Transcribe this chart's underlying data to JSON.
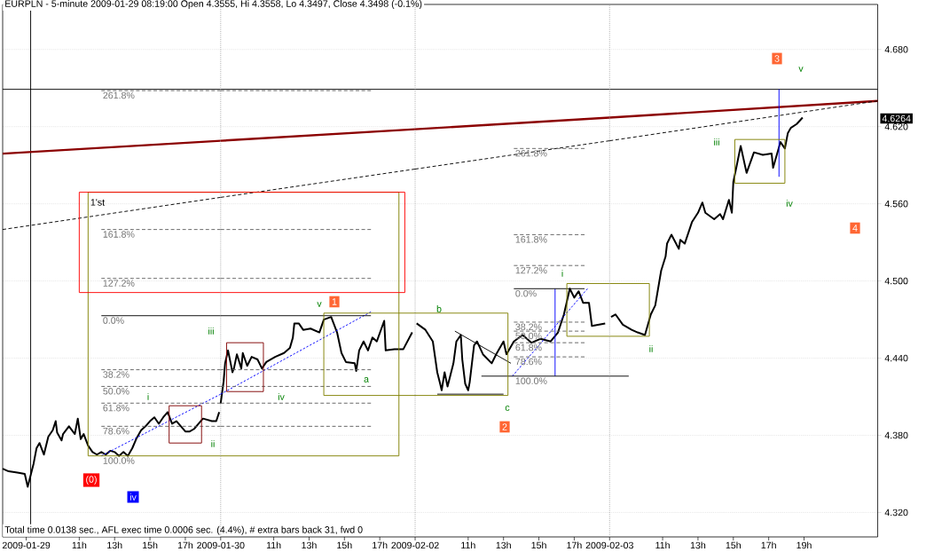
{
  "chart_data": [
    {
      "type": "line",
      "title": "EURPLN - 5-minute 2009-01-29 08:19:00 Open 4.3555, Hi 4.3558, Lo 4.3497, Close 4.3498 (-0.1%)",
      "xlim": [
        "2009-01-29T06:40",
        "2009-01-29T19:00"
      ],
      "ylim": [
        4.301,
        4.715
      ],
      "xticks": [
        {
          "value": "2009-01-29T08:00",
          "label": "2009-01-29"
        },
        {
          "value": "2009-01-29T11:00",
          "label": "11h"
        },
        {
          "value": "2009-01-29T13:00",
          "label": "13h"
        },
        {
          "value": "2009-01-29T15:00",
          "label": "15h"
        },
        {
          "value": "2009-01-29T17:00",
          "label": "17h"
        }
      ],
      "yticks": [
        4.32,
        4.38,
        4.44,
        4.5,
        4.56,
        4.62,
        4.68
      ],
      "tick_labels": "x",
      "grid": "y",
      "series": [
        {
          "color": "#000000",
          "x": [
            "2009-01-29T06:40",
            "2009-01-29T07:00",
            "2009-01-29T07:30",
            "2009-01-29T07:55",
            "2009-01-29T08:05",
            "2009-01-29T08:15",
            "2009-01-29T08:25",
            "2009-01-29T08:35",
            "2009-01-29T08:45",
            "2009-01-29T09:00",
            "2009-01-29T09:15",
            "2009-01-29T09:30",
            "2009-01-29T09:40",
            "2009-01-29T09:45",
            "2009-01-29T10:00",
            "2009-01-29T10:05",
            "2009-01-29T10:25",
            "2009-01-29T10:45",
            "2009-01-29T10:55",
            "2009-01-29T11:05",
            "2009-01-29T11:15",
            "2009-01-29T11:30",
            "2009-01-29T11:45",
            "2009-01-29T12:00",
            "2009-01-29T12:15",
            "2009-01-29T12:30",
            "2009-01-29T12:45",
            "2009-01-29T13:00",
            "2009-01-29T13:15",
            "2009-01-29T13:30",
            "2009-01-29T13:45",
            "2009-01-29T14:00",
            "2009-01-29T14:15",
            "2009-01-29T14:30",
            "2009-01-29T14:45",
            "2009-01-29T15:00",
            "2009-01-29T15:15",
            "2009-01-29T15:30",
            "2009-01-29T15:45",
            "2009-01-29T16:00",
            "2009-01-29T16:15",
            "2009-01-29T16:30",
            "2009-01-29T16:45",
            "2009-01-29T17:00",
            "2009-01-29T17:15",
            "2009-01-29T17:30",
            "2009-01-29T17:45",
            "2009-01-29T18:00",
            "2009-01-29T18:30",
            "2009-01-29T18:45",
            "2009-01-29T18:55"
          ],
          "values": [
            4.354,
            4.352,
            4.351,
            4.35,
            4.34,
            4.349,
            4.358,
            4.37,
            4.374,
            4.365,
            4.379,
            4.384,
            4.391,
            4.382,
            4.376,
            4.381,
            4.387,
            4.381,
            4.393,
            4.377,
            4.381,
            4.372,
            4.367,
            4.365,
            4.367,
            4.365,
            4.368,
            4.367,
            4.364,
            4.367,
            4.364,
            4.37,
            4.378,
            4.384,
            4.387,
            4.391,
            4.394,
            4.389,
            4.394,
            4.398,
            4.389,
            4.391,
            4.387,
            4.383,
            4.383,
            4.385,
            4.389,
            4.393,
            4.391,
            4.391,
            4.398
          ]
        },
        {
          "color": "#8b0000",
          "x": [
            "2009-01-29T06:40",
            "2009-01-29T19:00"
          ],
          "values": [
            4.599,
            4.609
          ]
        },
        {
          "color": "#000000",
          "line_style": "dashed",
          "x": [
            "2009-01-29T06:40",
            "2009-01-29T19:00"
          ],
          "values": [
            4.54,
            4.565
          ]
        },
        {
          "color": "#0000ff",
          "line_style": "dotted",
          "x": [
            "2009-01-29T12:15",
            "2009-01-29T19:00"
          ],
          "values": [
            4.364,
            4.412
          ]
        },
        {
          "color": "#606060",
          "line_style": "dashed",
          "x": [
            "2009-01-29T12:15",
            "2009-01-29T19:00"
          ],
          "values": [
            4.648,
            4.648
          ]
        },
        {
          "color": "#606060",
          "line_style": "dashed",
          "x": [
            "2009-01-29T12:15",
            "2009-01-29T19:00"
          ],
          "values": [
            4.54,
            4.54
          ]
        },
        {
          "color": "#606060",
          "line_style": "dashed",
          "x": [
            "2009-01-29T12:15",
            "2009-01-29T19:00"
          ],
          "values": [
            4.502,
            4.502
          ]
        },
        {
          "color": "#000000",
          "x": [
            "2009-01-29T12:15",
            "2009-01-29T19:00"
          ],
          "values": [
            4.473,
            4.473
          ]
        },
        {
          "color": "#606060",
          "line_style": "dashed",
          "x": [
            "2009-01-29T12:15",
            "2009-01-29T19:00"
          ],
          "values": [
            4.431,
            4.431
          ]
        },
        {
          "color": "#606060",
          "line_style": "dashed",
          "x": [
            "2009-01-29T12:15",
            "2009-01-29T19:00"
          ],
          "values": [
            4.418,
            4.418
          ]
        },
        {
          "color": "#606060",
          "line_style": "dashed",
          "x": [
            "2009-01-29T12:15",
            "2009-01-29T19:00"
          ],
          "values": [
            4.405,
            4.405
          ]
        },
        {
          "color": "#606060",
          "line_style": "dashed",
          "x": [
            "2009-01-29T12:15",
            "2009-01-29T19:00"
          ],
          "values": [
            4.387,
            4.387
          ]
        },
        {
          "color": "#808000",
          "x": [
            "2009-01-29T19:00",
            "2009-01-29T11:30",
            "2009-01-29T11:30",
            "2009-01-29T19:00"
          ],
          "values": [
            4.569,
            4.569,
            4.364,
            4.364
          ]
        },
        {
          "color": "#ff0000",
          "x": [
            "2009-01-29T19:00",
            "2009-01-29T11:00",
            "2009-01-29T11:00",
            "2009-01-29T19:00"
          ],
          "values": [
            4.569,
            4.569,
            4.491,
            4.491
          ]
        },
        {
          "color": "#800000",
          "x": [
            "2009-01-29T16:05",
            "2009-01-29T17:55",
            "2009-01-29T17:55",
            "2009-01-29T16:05",
            "2009-01-29T16:05"
          ],
          "values": [
            4.403,
            4.403,
            4.374,
            4.374,
            4.403
          ]
        }
      ],
      "ref_lines": [
        {
          "axis": "y",
          "value": 4.649,
          "color": "#000000"
        },
        {
          "axis": "x",
          "value": "2009-01-29T08:15",
          "color": "#000000"
        }
      ],
      "annotations": [
        "Total time 0.0138 sec., AFL exec time 0.0006 sec. (4.4%), # extra bars back 31, fwd 0",
        {
          "text": "261.8%",
          "x": "2009-01-29T12:15",
          "y": 4.648
        },
        {
          "text": "161.8%",
          "x": "2009-01-29T12:15",
          "y": 4.54
        },
        {
          "text": "127.2%",
          "x": "2009-01-29T12:15",
          "y": 4.502
        },
        {
          "text": "0.0%",
          "x": "2009-01-29T12:15",
          "y": 4.473
        },
        {
          "text": "38.2%",
          "x": "2009-01-29T12:15",
          "y": 4.431
        },
        {
          "text": "50.0%",
          "x": "2009-01-29T12:15",
          "y": 4.418
        },
        {
          "text": "61.8%",
          "x": "2009-01-29T12:15",
          "y": 4.405
        },
        {
          "text": "78.6%",
          "x": "2009-01-29T12:15",
          "y": 4.387
        },
        {
          "text": "100.0%",
          "x": "2009-01-29T12:15",
          "y": 4.364
        },
        "1'st",
        "i",
        "ii",
        "iii",
        "(0)",
        "iv"
      ]
    },
    {
      "type": "line",
      "xlim": [
        "2009-01-30T08:00",
        "2009-01-30T19:00"
      ],
      "ylim": [
        4.301,
        4.715
      ],
      "xticks": [
        {
          "value": "2009-01-30T08:00",
          "label": "2009-01-30"
        },
        {
          "value": "2009-01-30T11:00",
          "label": "11h"
        },
        {
          "value": "2009-01-30T13:00",
          "label": "13h"
        },
        {
          "value": "2009-01-30T15:00",
          "label": "15h"
        },
        {
          "value": "2009-01-30T17:00",
          "label": "17h"
        }
      ],
      "yticks": [
        4.32,
        4.38,
        4.44,
        4.5,
        4.56,
        4.62,
        4.68
      ],
      "tick_labels": "x",
      "grid": "y",
      "series": [
        {
          "color": "#000000",
          "x": [
            "2009-01-30T08:00",
            "2009-01-30T08:10",
            "2009-01-30T08:15",
            "2009-01-30T08:25",
            "2009-01-30T08:40",
            "2009-01-30T08:45",
            "2009-01-30T08:55",
            "2009-01-30T09:10",
            "2009-01-30T09:15",
            "2009-01-30T09:30",
            "2009-01-30T09:45",
            "2009-01-30T10:05",
            "2009-01-30T10:20",
            "2009-01-30T10:35",
            "2009-01-30T11:05",
            "2009-01-30T11:35",
            "2009-01-30T11:55",
            "2009-01-30T12:05",
            "2009-01-30T12:10",
            "2009-01-30T12:25",
            "2009-01-30T12:40",
            "2009-01-30T13:05",
            "2009-01-30T13:35",
            "2009-01-30T13:50",
            "2009-01-30T14:15",
            "2009-01-30T14:35",
            "2009-01-30T14:50",
            "2009-01-30T15:05",
            "2009-01-30T15:35",
            "2009-01-30T15:40",
            "2009-01-30T15:50",
            "2009-01-30T16:05",
            "2009-01-30T16:20",
            "2009-01-30T16:35",
            "2009-01-30T16:50",
            "2009-01-30T17:15",
            "2009-01-30T17:20",
            "2009-01-30T17:50",
            "2009-01-30T18:20",
            "2009-01-30T18:50"
          ],
          "values": [
            4.405,
            4.422,
            4.436,
            4.446,
            4.429,
            4.432,
            4.443,
            4.432,
            4.444,
            4.434,
            4.441,
            4.439,
            4.432,
            4.437,
            4.441,
            4.444,
            4.448,
            4.456,
            4.467,
            4.467,
            4.462,
            4.463,
            4.46,
            4.47,
            4.472,
            4.46,
            4.444,
            4.437,
            4.436,
            4.43,
            4.446,
            4.453,
            4.446,
            4.456,
            4.453,
            4.469,
            4.446,
            4.447,
            4.447,
            4.46
          ]
        },
        {
          "color": "#8b0000",
          "x": [
            "2009-01-30T08:00",
            "2009-01-30T19:00"
          ],
          "values": [
            4.609,
            4.618
          ]
        },
        {
          "color": "#000000",
          "line_style": "dashed",
          "x": [
            "2009-01-30T08:00",
            "2009-01-30T19:00"
          ],
          "values": [
            4.565,
            4.587
          ]
        },
        {
          "color": "#0000ff",
          "line_style": "dotted",
          "x": [
            "2009-01-30T08:00",
            "2009-01-30T16:30"
          ],
          "values": [
            4.412,
            4.476
          ]
        },
        {
          "color": "#606060",
          "line_style": "dashed",
          "x": [
            "2009-01-30T08:00",
            "2009-01-30T16:30"
          ],
          "values": [
            4.648,
            4.648
          ]
        },
        {
          "color": "#606060",
          "line_style": "dashed",
          "x": [
            "2009-01-30T08:00",
            "2009-01-30T16:30"
          ],
          "values": [
            4.54,
            4.54
          ]
        },
        {
          "color": "#606060",
          "line_style": "dashed",
          "x": [
            "2009-01-30T08:00",
            "2009-01-30T16:30"
          ],
          "values": [
            4.502,
            4.502
          ]
        },
        {
          "color": "#000000",
          "x": [
            "2009-01-30T08:00",
            "2009-01-30T16:30"
          ],
          "values": [
            4.473,
            4.473
          ]
        },
        {
          "color": "#606060",
          "line_style": "dashed",
          "x": [
            "2009-01-30T08:00",
            "2009-01-30T16:30"
          ],
          "values": [
            4.431,
            4.431
          ]
        },
        {
          "color": "#606060",
          "line_style": "dashed",
          "x": [
            "2009-01-30T08:00",
            "2009-01-30T16:30"
          ],
          "values": [
            4.418,
            4.418
          ]
        },
        {
          "color": "#606060",
          "line_style": "dashed",
          "x": [
            "2009-01-30T08:00",
            "2009-01-30T16:30"
          ],
          "values": [
            4.405,
            4.405
          ]
        },
        {
          "color": "#606060",
          "line_style": "dashed",
          "x": [
            "2009-01-30T08:00",
            "2009-01-30T16:30"
          ],
          "values": [
            4.387,
            4.387
          ]
        },
        {
          "color": "#808000",
          "x": [
            "2009-01-30T08:00",
            "2009-01-30T18:05",
            "2009-01-30T18:05",
            "2009-01-30T08:00"
          ],
          "values": [
            4.569,
            4.569,
            4.364,
            4.364
          ]
        },
        {
          "color": "#ff0000",
          "x": [
            "2009-01-30T08:00",
            "2009-01-30T18:25",
            "2009-01-30T18:25",
            "2009-01-30T08:00"
          ],
          "values": [
            4.569,
            4.569,
            4.491,
            4.491
          ]
        },
        {
          "color": "#800000",
          "x": [
            "2009-01-30T08:20",
            "2009-01-30T10:25",
            "2009-01-30T10:25",
            "2009-01-30T08:20",
            "2009-01-30T08:20"
          ],
          "values": [
            4.452,
            4.452,
            4.414,
            4.414,
            4.452
          ]
        },
        {
          "color": "#808000",
          "x": [
            "2009-01-30T19:00",
            "2009-01-30T13:50",
            "2009-01-30T13:50",
            "2009-01-30T19:00"
          ],
          "values": [
            4.475,
            4.475,
            4.411,
            4.411
          ]
        }
      ],
      "ref_lines": [
        {
          "axis": "y",
          "value": 4.649,
          "color": "#000000"
        },
        {
          "axis": "x",
          "value": "2009-01-30T08:00",
          "color": "#a0a0a0",
          "line_style": "dotted"
        }
      ],
      "annotations": [
        "iv",
        "v",
        "1",
        "a"
      ]
    },
    {
      "type": "line",
      "xlim": [
        "2009-02-02T08:00",
        "2009-02-02T19:00"
      ],
      "ylim": [
        4.301,
        4.715
      ],
      "xticks": [
        {
          "value": "2009-02-02T08:00",
          "label": "2009-02-02"
        },
        {
          "value": "2009-02-02T11:00",
          "label": "11h"
        },
        {
          "value": "2009-02-02T13:00",
          "label": "13h"
        },
        {
          "value": "2009-02-02T15:00",
          "label": "15h"
        },
        {
          "value": "2009-02-02T17:00",
          "label": "17h"
        }
      ],
      "yticks": [
        4.32,
        4.38,
        4.44,
        4.5,
        4.56,
        4.62,
        4.68
      ],
      "tick_labels": "x",
      "grid": "y",
      "series": [
        {
          "color": "#000000",
          "x": [
            "2009-02-02T08:05",
            "2009-02-02T08:35",
            "2009-02-02T09:00",
            "2009-02-02T09:15",
            "2009-02-02T09:25",
            "2009-02-02T09:30",
            "2009-02-02T09:40",
            "2009-02-02T09:50",
            "2009-02-02T10:10",
            "2009-02-02T10:20",
            "2009-02-02T10:35",
            "2009-02-02T10:40",
            "2009-02-02T10:50",
            "2009-02-02T11:00",
            "2009-02-02T11:05",
            "2009-02-02T11:20",
            "2009-02-02T11:30",
            "2009-02-02T11:50",
            "2009-02-02T12:20",
            "2009-02-02T12:35",
            "2009-02-02T13:00",
            "2009-02-02T13:10",
            "2009-02-02T13:35",
            "2009-02-02T14:05",
            "2009-02-02T14:35",
            "2009-02-02T15:05",
            "2009-02-02T15:40",
            "2009-02-02T16:05",
            "2009-02-02T16:25",
            "2009-02-02T16:35",
            "2009-02-02T16:45",
            "2009-02-02T17:00",
            "2009-02-02T17:15",
            "2009-02-02T17:30",
            "2009-02-02T17:50",
            "2009-02-02T18:00",
            "2009-02-02T18:45"
          ],
          "values": [
            4.467,
            4.462,
            4.453,
            4.429,
            4.42,
            4.415,
            4.429,
            4.418,
            4.436,
            4.453,
            4.458,
            4.439,
            4.42,
            4.415,
            4.421,
            4.45,
            4.453,
            4.443,
            4.436,
            4.443,
            4.453,
            4.443,
            4.453,
            4.458,
            4.452,
            4.455,
            4.453,
            4.46,
            4.474,
            4.484,
            4.494,
            4.487,
            4.492,
            4.483,
            4.483,
            4.465,
            4.467
          ]
        },
        {
          "color": "#8b0000",
          "x": [
            "2009-02-02T08:00",
            "2009-02-02T19:00"
          ],
          "values": [
            4.618,
            4.627
          ]
        },
        {
          "color": "#000000",
          "line_style": "dashed",
          "x": [
            "2009-02-02T08:00",
            "2009-02-02T19:00"
          ],
          "values": [
            4.587,
            4.609
          ]
        },
        {
          "color": "#0000ff",
          "line_style": "dotted",
          "x": [
            "2009-02-02T13:30",
            "2009-02-02T17:45"
          ],
          "values": [
            4.426,
            4.494
          ]
        },
        {
          "color": "#0000ff",
          "x": [
            "2009-02-02T15:55",
            "2009-02-02T15:55"
          ],
          "values": [
            4.426,
            4.494
          ]
        },
        {
          "color": "#606060",
          "line_style": "dashed",
          "x": [
            "2009-02-02T13:35",
            "2009-02-02T17:35"
          ],
          "values": [
            4.603,
            4.603
          ]
        },
        {
          "color": "#606060",
          "line_style": "dashed",
          "x": [
            "2009-02-02T13:35",
            "2009-02-02T17:35"
          ],
          "values": [
            4.536,
            4.536
          ]
        },
        {
          "color": "#606060",
          "line_style": "dashed",
          "x": [
            "2009-02-02T13:35",
            "2009-02-02T17:35"
          ],
          "values": [
            4.512,
            4.512
          ]
        },
        {
          "color": "#000000",
          "x": [
            "2009-02-02T13:35",
            "2009-02-02T17:35"
          ],
          "values": [
            4.494,
            4.494
          ]
        },
        {
          "color": "#606060",
          "line_style": "dashed",
          "x": [
            "2009-02-02T13:35",
            "2009-02-02T17:35"
          ],
          "values": [
            4.468,
            4.468
          ]
        },
        {
          "color": "#606060",
          "line_style": "dashed",
          "x": [
            "2009-02-02T13:35",
            "2009-02-02T17:35"
          ],
          "values": [
            4.461,
            4.461
          ]
        },
        {
          "color": "#606060",
          "line_style": "dashed",
          "x": [
            "2009-02-02T13:35",
            "2009-02-02T17:35"
          ],
          "values": [
            4.452,
            4.452
          ]
        },
        {
          "color": "#606060",
          "line_style": "dashed",
          "x": [
            "2009-02-02T13:35",
            "2009-02-02T17:35"
          ],
          "values": [
            4.441,
            4.441
          ]
        },
        {
          "color": "#000000",
          "x": [
            "2009-02-02T11:45",
            "2009-02-02T19:00"
          ],
          "values": [
            4.426,
            4.426
          ]
        },
        {
          "color": "#000000",
          "x": [
            "2009-02-02T09:15",
            "2009-02-02T13:00"
          ],
          "values": [
            4.412,
            4.412
          ]
        },
        {
          "color": "#000000",
          "x": [
            "2009-02-02T10:15",
            "2009-02-02T13:25"
          ],
          "values": [
            4.461,
            4.436
          ]
        },
        {
          "color": "#808000",
          "x": [
            "2009-02-02T08:00",
            "2009-02-02T13:15",
            "2009-02-02T13:15",
            "2009-02-02T08:00"
          ],
          "values": [
            4.475,
            4.475,
            4.411,
            4.411
          ]
        },
        {
          "color": "#808000",
          "x": [
            "2009-02-02T19:00",
            "2009-02-02T16:35",
            "2009-02-02T16:35",
            "2009-02-02T19:00"
          ],
          "values": [
            4.498,
            4.498,
            4.457,
            4.457
          ]
        }
      ],
      "ref_lines": [
        {
          "axis": "y",
          "value": 4.649,
          "color": "#000000"
        },
        {
          "axis": "x",
          "value": "2009-02-02T08:00",
          "color": "#a0a0a0",
          "line_style": "dotted"
        }
      ],
      "annotations": [
        {
          "text": "261.8%",
          "x": "2009-02-02T13:35",
          "y": 4.603
        },
        {
          "text": "161.8%",
          "x": "2009-02-02T13:35",
          "y": 4.536
        },
        {
          "text": "127.2%",
          "x": "2009-02-02T13:35",
          "y": 4.512
        },
        {
          "text": "0.0%",
          "x": "2009-02-02T13:35",
          "y": 4.494
        },
        {
          "text": "38.2%",
          "x": "2009-02-02T13:35",
          "y": 4.468
        },
        {
          "text": "50.0%",
          "x": "2009-02-02T13:35",
          "y": 4.461
        },
        {
          "text": "61.8%",
          "x": "2009-02-02T13:35",
          "y": 4.452
        },
        {
          "text": "78.6%",
          "x": "2009-02-02T13:35",
          "y": 4.441
        },
        {
          "text": "100.0%",
          "x": "2009-02-02T13:35",
          "y": 4.426
        },
        "b",
        "c",
        "2",
        "i"
      ]
    },
    {
      "type": "line",
      "xlim": [
        "2009-02-03T08:00",
        "2009-02-03T23:10"
      ],
      "ylim": [
        4.301,
        4.715
      ],
      "xticks": [
        {
          "value": "2009-02-03T08:00",
          "label": "2009-02-03"
        },
        {
          "value": "2009-02-03T11:00",
          "label": "11h"
        },
        {
          "value": "2009-02-03T13:00",
          "label": "13h"
        },
        {
          "value": "2009-02-03T15:00",
          "label": "15h"
        },
        {
          "value": "2009-02-03T17:00",
          "label": "17h"
        },
        {
          "value": "2009-02-03T19:00",
          "label": "19h"
        }
      ],
      "yticks": [
        {
          "value": 4.32,
          "label": "4.320"
        },
        {
          "value": 4.38,
          "label": "4.380"
        },
        {
          "value": 4.44,
          "label": "4.440"
        },
        {
          "value": 4.5,
          "label": "4.500"
        },
        {
          "value": 4.56,
          "label": "4.560"
        },
        {
          "value": 4.62,
          "label": "4.620"
        },
        {
          "value": 4.68,
          "label": "4.680"
        }
      ],
      "grid": "y",
      "series": [
        {
          "color": "#000000",
          "x": [
            "2009-02-03T08:05",
            "2009-02-03T08:20",
            "2009-02-03T08:45",
            "2009-02-03T09:15",
            "2009-02-03T09:35",
            "2009-02-03T10:00",
            "2009-02-03T10:20",
            "2009-02-03T10:35",
            "2009-02-03T10:55",
            "2009-02-03T11:10",
            "2009-02-03T11:15",
            "2009-02-03T11:30",
            "2009-02-03T11:55",
            "2009-02-03T12:00",
            "2009-02-03T12:15",
            "2009-02-03T12:40",
            "2009-02-03T13:00",
            "2009-02-03T13:15",
            "2009-02-03T13:25",
            "2009-02-03T13:55",
            "2009-02-03T14:15",
            "2009-02-03T14:25",
            "2009-02-03T14:45",
            "2009-02-03T14:55",
            "2009-02-03T15:00",
            "2009-02-03T15:10",
            "2009-02-03T15:25",
            "2009-02-03T15:45",
            "2009-02-03T16:10",
            "2009-02-03T16:40",
            "2009-02-03T17:10",
            "2009-02-03T17:15",
            "2009-02-03T17:40",
            "2009-02-03T17:55",
            "2009-02-03T18:05",
            "2009-02-03T18:15",
            "2009-02-03T18:35",
            "2009-02-03T18:55"
          ],
          "values": [
            4.472,
            4.474,
            4.466,
            4.462,
            4.46,
            4.458,
            4.474,
            4.481,
            4.508,
            4.519,
            4.529,
            4.536,
            4.525,
            4.532,
            4.529,
            4.546,
            4.553,
            4.561,
            4.553,
            4.548,
            4.552,
            4.548,
            4.563,
            4.553,
            4.577,
            4.588,
            4.605,
            4.584,
            4.6,
            4.598,
            4.599,
            4.588,
            4.608,
            4.603,
            4.615,
            4.619,
            4.622,
            4.627
          ]
        },
        {
          "color": "#8b0000",
          "x": [
            "2009-02-03T08:00",
            "2009-02-03T23:10"
          ],
          "values": [
            4.627,
            4.64
          ]
        },
        {
          "color": "#000000",
          "line_style": "dashed",
          "x": [
            "2009-02-03T08:00",
            "2009-02-03T23:10"
          ],
          "values": [
            4.609,
            4.64
          ]
        },
        {
          "color": "#0000ff",
          "x": [
            "2009-02-03T17:35",
            "2009-02-03T17:35"
          ],
          "values": [
            4.581,
            4.649
          ]
        },
        {
          "color": "#000000",
          "x": [
            "2009-02-03T08:00",
            "2009-02-03T09:05"
          ],
          "values": [
            4.426,
            4.426
          ]
        },
        {
          "color": "#808000",
          "x": [
            "2009-02-03T08:00",
            "2009-02-03T10:15",
            "2009-02-03T10:15",
            "2009-02-03T08:00"
          ],
          "values": [
            4.498,
            4.498,
            4.457,
            4.457
          ]
        },
        {
          "color": "#808000",
          "x": [
            "2009-02-03T15:05",
            "2009-02-03T17:55",
            "2009-02-03T17:55",
            "2009-02-03T15:05",
            "2009-02-03T15:05"
          ],
          "values": [
            4.61,
            4.61,
            4.576,
            4.576,
            4.61
          ]
        }
      ],
      "ref_lines": [
        {
          "axis": "y",
          "value": 4.649,
          "color": "#000000"
        },
        {
          "axis": "x",
          "value": "2009-02-03T08:00",
          "color": "#a0a0a0",
          "line_style": "dotted"
        }
      ],
      "annotations": [
        {
          "text": "4.6264",
          "y": 4.6264
        },
        "ii",
        "iii",
        "iv",
        "v",
        "3",
        "4"
      ]
    }
  ]
}
